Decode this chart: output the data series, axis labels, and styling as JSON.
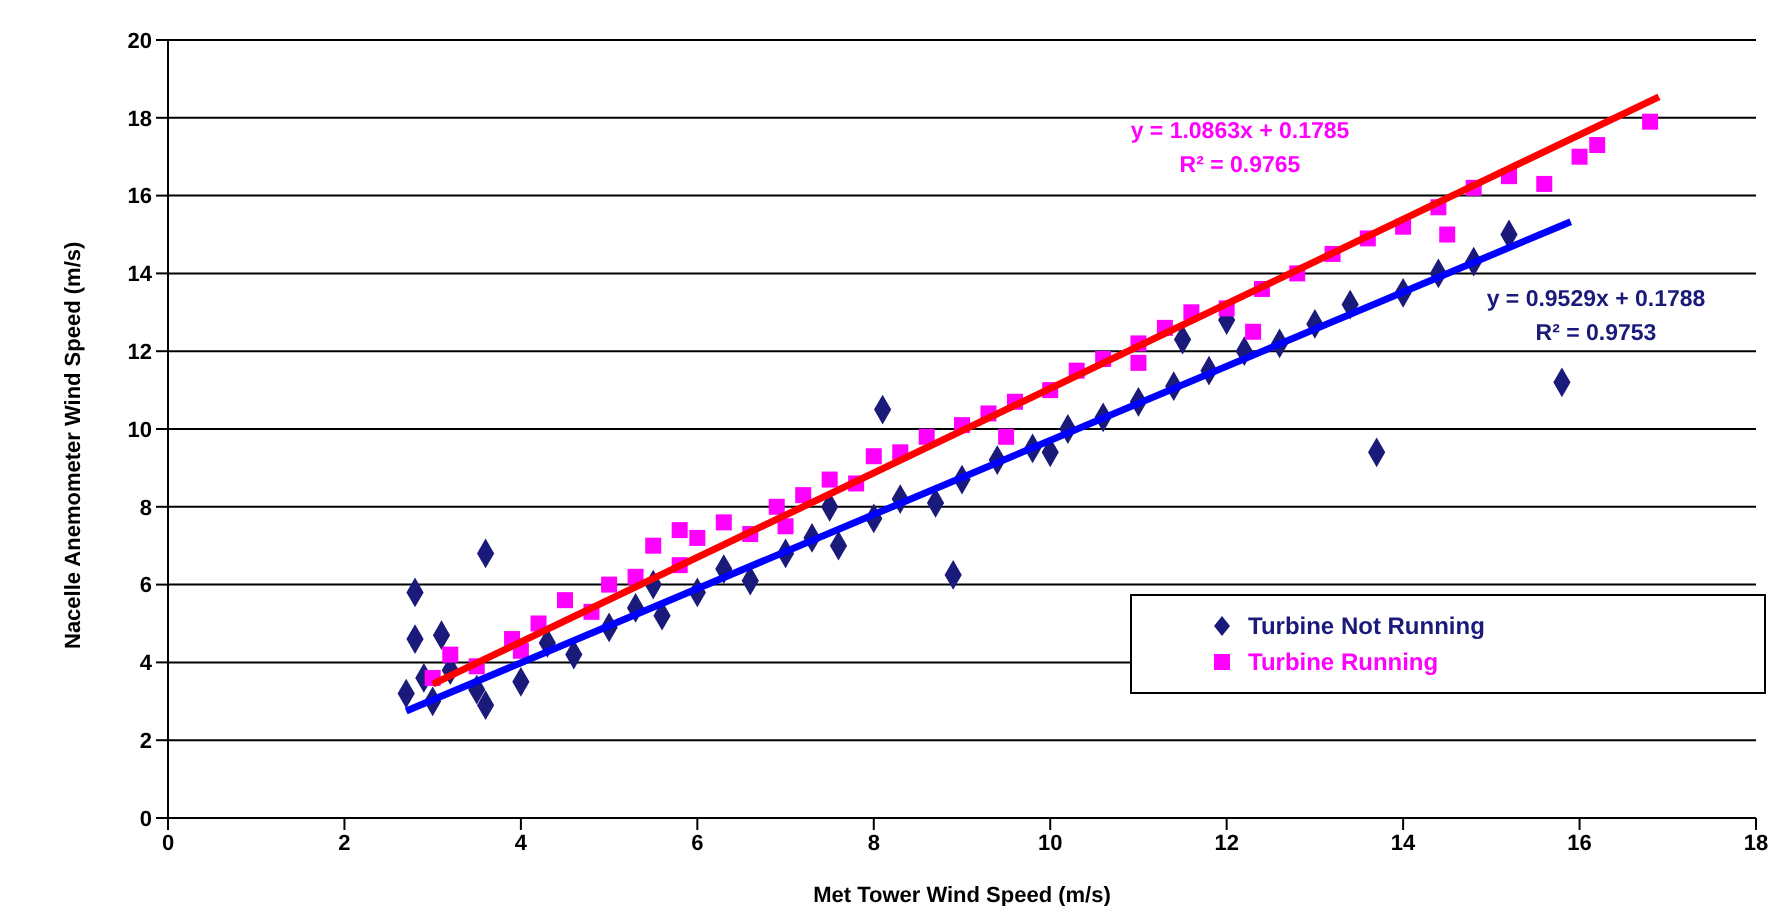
{
  "chart_data": {
    "type": "scatter",
    "xlabel": "Met Tower Wind Speed (m/s)",
    "ylabel": "Nacelle Anemometer Wind Speed (m/s)",
    "xlim": [
      0,
      18
    ],
    "xticks": [
      0,
      2,
      4,
      6,
      8,
      10,
      12,
      14,
      16,
      18
    ],
    "ylim": [
      0,
      20
    ],
    "yticks": [
      0,
      2,
      4,
      6,
      8,
      10,
      12,
      14,
      16,
      18,
      20
    ],
    "grid": "y",
    "legend": "bottom right",
    "series": [
      {
        "name": "Turbine Not Running",
        "color": "#1a1a7a",
        "marker": "diamond",
        "x": [
          2.7,
          2.8,
          2.9,
          3.0,
          3.1,
          3.2,
          3.5,
          3.6,
          3.6,
          2.8,
          4.0,
          4.3,
          4.6,
          5.0,
          5.3,
          5.6,
          6.0,
          6.3,
          6.6,
          7.0,
          7.3,
          7.6,
          8.0,
          8.3,
          8.7,
          8.9,
          9.0,
          9.4,
          9.8,
          10.2,
          10.6,
          11.0,
          11.4,
          11.8,
          12.2,
          12.6,
          13.0,
          13.4,
          13.7,
          14.0,
          14.4,
          14.8,
          15.2,
          15.8,
          8.1,
          10.0,
          12.0,
          5.5,
          7.5,
          11.5
        ],
        "values": [
          3.2,
          4.6,
          3.6,
          3.0,
          4.7,
          3.8,
          3.3,
          2.9,
          6.8,
          5.8,
          3.5,
          4.5,
          4.2,
          4.9,
          5.4,
          5.2,
          5.8,
          6.4,
          6.1,
          6.8,
          7.2,
          7.0,
          7.7,
          8.2,
          8.1,
          6.25,
          8.7,
          9.2,
          9.5,
          10.0,
          10.3,
          10.7,
          11.1,
          11.5,
          12.0,
          12.2,
          12.7,
          13.2,
          9.4,
          13.5,
          14.0,
          14.3,
          15.0,
          11.2,
          10.5,
          9.4,
          12.8,
          6.0,
          8.0,
          12.3
        ]
      },
      {
        "name": "Turbine Running",
        "color": "#ff00ff",
        "marker": "square",
        "x": [
          3.0,
          3.2,
          3.5,
          3.9,
          4.2,
          4.5,
          4.8,
          5.0,
          5.3,
          5.5,
          5.8,
          6.0,
          6.3,
          6.6,
          6.9,
          7.2,
          7.5,
          7.8,
          8.0,
          8.3,
          8.6,
          9.0,
          9.3,
          9.6,
          10.0,
          10.3,
          10.6,
          11.0,
          11.3,
          11.6,
          12.0,
          12.4,
          12.8,
          13.2,
          13.6,
          14.0,
          14.4,
          14.8,
          15.2,
          15.6,
          16.0,
          16.2,
          16.8,
          9.5,
          11.0,
          7.0,
          4.0,
          12.3,
          14.5,
          5.8
        ],
        "values": [
          3.6,
          4.2,
          3.9,
          4.6,
          5.0,
          5.6,
          5.3,
          6.0,
          6.2,
          7.0,
          6.5,
          7.2,
          7.6,
          7.3,
          8.0,
          8.3,
          8.7,
          8.6,
          9.3,
          9.4,
          9.8,
          10.1,
          10.4,
          10.7,
          11.0,
          11.5,
          11.8,
          12.2,
          12.6,
          13.0,
          13.1,
          13.6,
          14.0,
          14.5,
          14.9,
          15.2,
          15.7,
          16.2,
          16.5,
          16.3,
          17.0,
          17.3,
          17.9,
          9.8,
          11.7,
          7.5,
          4.3,
          12.5,
          15.0,
          7.4
        ]
      },
      {
        "type": "line",
        "color": "#0000ff",
        "x": [
          2.7,
          15.9
        ],
        "values": [
          2.75,
          15.33
        ]
      },
      {
        "type": "line",
        "color": "#ff0000",
        "x": [
          3.0,
          16.9
        ],
        "values": [
          3.44,
          18.54
        ]
      }
    ],
    "annotations": [
      "y = 1.0863x + 0.1785",
      "R² = 0.9765",
      "y = 0.9529x + 0.1788",
      "R² = 0.9753"
    ]
  }
}
